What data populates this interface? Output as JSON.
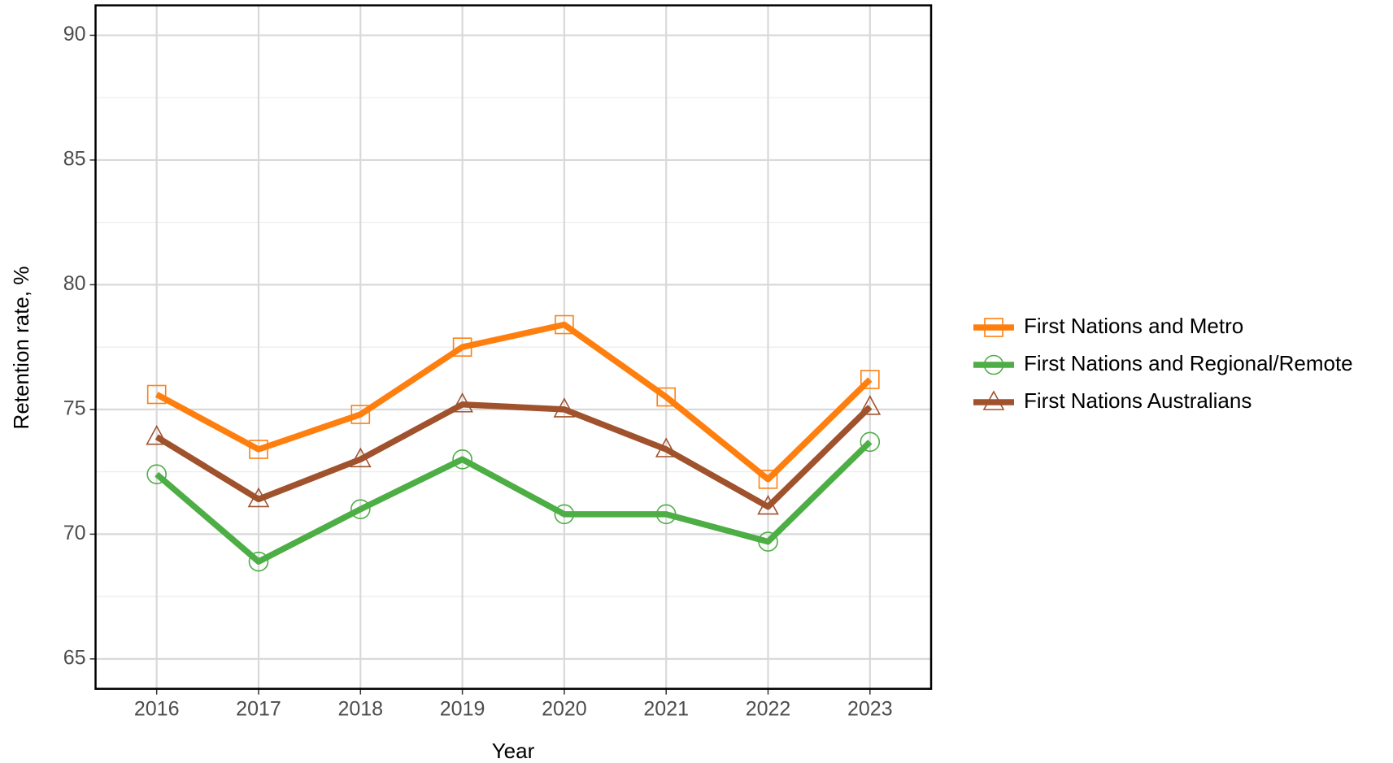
{
  "chart_data": {
    "type": "line",
    "x_label": "Year",
    "y_label": "Retention rate, %",
    "x": [
      2016,
      2017,
      2018,
      2019,
      2020,
      2021,
      2022,
      2023
    ],
    "series": [
      {
        "name": "First Nations and Metro",
        "color": "#ff7f0e",
        "marker": "square",
        "values": [
          75.6,
          73.4,
          74.8,
          77.5,
          78.4,
          75.5,
          72.2,
          76.2
        ]
      },
      {
        "name": "First Nations and Regional/Remote",
        "color": "#4cae44",
        "marker": "circle",
        "values": [
          72.4,
          68.9,
          71.0,
          73.0,
          70.8,
          70.8,
          69.7,
          73.7
        ]
      },
      {
        "name": "First Nations Australians",
        "color": "#a0522d",
        "marker": "triangle",
        "values": [
          73.9,
          71.4,
          73.0,
          75.2,
          75.0,
          73.4,
          71.1,
          75.1
        ]
      }
    ],
    "xlim": [
      2015.4,
      2023.6
    ],
    "xticks": [
      2016,
      2017,
      2018,
      2019,
      2020,
      2021,
      2022,
      2023
    ],
    "ylim": [
      63.8,
      91.2
    ],
    "yticks": [
      65,
      70,
      75,
      80,
      85,
      90
    ],
    "y_minor_ticks": [
      67.5,
      72.5,
      77.5,
      82.5,
      87.5
    ],
    "grid": true,
    "legend": "right"
  }
}
